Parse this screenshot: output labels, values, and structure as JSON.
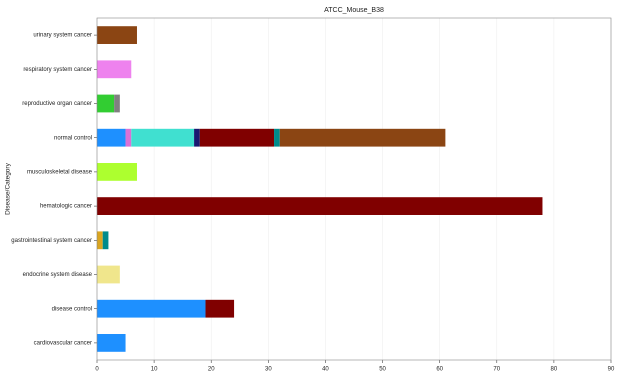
{
  "chart_data": {
    "type": "stacked-barh",
    "title": "ATCC_Mouse_B38",
    "ylabel": "Disease/Category",
    "categories": [
      "cardiovascular cancer",
      "disease control",
      "endocrine system disease",
      "gastrointestinal system cancer",
      "hematologic cancer",
      "musculoskeletal disease",
      "normal control",
      "reproductive organ cancer",
      "respiratory system cancer",
      "urinary system cancer"
    ],
    "series": [
      {
        "color": "#1e90ff",
        "values": [
          5,
          19,
          0,
          0,
          0,
          0,
          5,
          0,
          0,
          0
        ]
      },
      {
        "color": "#daa520",
        "values": [
          0,
          0,
          0,
          1,
          0,
          0,
          0,
          0,
          0,
          0
        ]
      },
      {
        "color": "#32cd32",
        "values": [
          0,
          0,
          0,
          0,
          0,
          0,
          0,
          3,
          0,
          0
        ]
      },
      {
        "color": "#808080",
        "values": [
          0,
          0,
          0,
          0,
          0,
          0,
          0,
          1,
          0,
          0
        ]
      },
      {
        "color": "#f0e68c",
        "values": [
          0,
          0,
          4,
          0,
          0,
          0,
          0,
          0,
          0,
          0
        ]
      },
      {
        "color": "#adff2f",
        "values": [
          0,
          0,
          0,
          0,
          0,
          7,
          0,
          0,
          0,
          0
        ]
      },
      {
        "color": "#ee82ee",
        "values": [
          0,
          0,
          0,
          0,
          0,
          0,
          0,
          0,
          6,
          0
        ]
      },
      {
        "color": "#da70d6",
        "values": [
          0,
          0,
          0,
          0,
          0,
          0,
          1,
          0,
          0,
          0
        ]
      },
      {
        "color": "#40e0d0",
        "values": [
          0,
          0,
          0,
          0,
          0,
          0,
          11,
          0,
          0,
          0
        ]
      },
      {
        "color": "#191970",
        "values": [
          0,
          0,
          0,
          0,
          0,
          0,
          1,
          0,
          0,
          0
        ]
      },
      {
        "color": "#800000",
        "values": [
          0,
          5,
          0,
          0,
          78,
          0,
          13,
          0,
          0,
          0
        ]
      },
      {
        "color": "#008b8b",
        "values": [
          0,
          0,
          0,
          1,
          0,
          0,
          1,
          0,
          0,
          0
        ]
      },
      {
        "color": "#8b4513",
        "values": [
          0,
          0,
          0,
          0,
          0,
          0,
          29,
          0,
          0,
          7
        ]
      }
    ],
    "xlim": [
      0,
      90
    ],
    "xticks": [
      0,
      10,
      20,
      30,
      40,
      50,
      60,
      70,
      80,
      90
    ],
    "grid": true
  }
}
